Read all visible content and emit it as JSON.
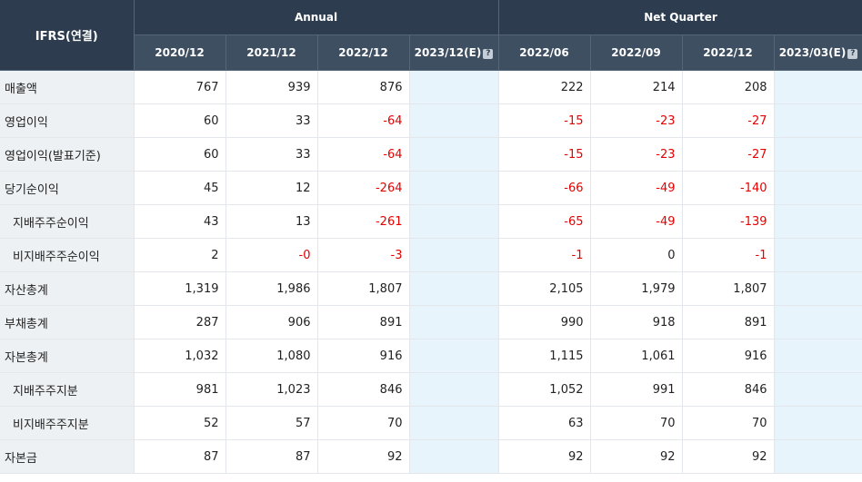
{
  "header": {
    "corner": "IFRS(연결)",
    "annual_label": "Annual",
    "quarter_label": "Net Quarter",
    "help_glyph": "?",
    "annual_periods": [
      "2020/12",
      "2021/12",
      "2022/12",
      "2023/12(E)"
    ],
    "quarter_periods": [
      "2022/06",
      "2022/09",
      "2022/12",
      "2023/03(E)"
    ]
  },
  "colors": {
    "header_bg": "#2d3d4f",
    "negative": "#e60000",
    "estimate_bg": "#e8f4fb",
    "label_bg": "#eef1f4"
  },
  "rows": [
    {
      "label": "매출액",
      "sub": false,
      "annual": [
        "767",
        "939",
        "876",
        ""
      ],
      "quarter": [
        "222",
        "214",
        "208",
        ""
      ]
    },
    {
      "label": "영업이익",
      "sub": false,
      "annual": [
        "60",
        "33",
        "-64",
        ""
      ],
      "quarter": [
        "-15",
        "-23",
        "-27",
        ""
      ]
    },
    {
      "label": "영업이익(발표기준)",
      "sub": false,
      "annual": [
        "60",
        "33",
        "-64",
        ""
      ],
      "quarter": [
        "-15",
        "-23",
        "-27",
        ""
      ]
    },
    {
      "label": "당기순이익",
      "sub": false,
      "annual": [
        "45",
        "12",
        "-264",
        ""
      ],
      "quarter": [
        "-66",
        "-49",
        "-140",
        ""
      ]
    },
    {
      "label": "지배주주순이익",
      "sub": true,
      "annual": [
        "43",
        "13",
        "-261",
        ""
      ],
      "quarter": [
        "-65",
        "-49",
        "-139",
        ""
      ]
    },
    {
      "label": "비지배주주순이익",
      "sub": true,
      "annual": [
        "2",
        "-0",
        "-3",
        ""
      ],
      "quarter": [
        "-1",
        "0",
        "-1",
        ""
      ]
    },
    {
      "label": "자산총계",
      "sub": false,
      "annual": [
        "1,319",
        "1,986",
        "1,807",
        ""
      ],
      "quarter": [
        "2,105",
        "1,979",
        "1,807",
        ""
      ]
    },
    {
      "label": "부채총계",
      "sub": false,
      "annual": [
        "287",
        "906",
        "891",
        ""
      ],
      "quarter": [
        "990",
        "918",
        "891",
        ""
      ]
    },
    {
      "label": "자본총계",
      "sub": false,
      "annual": [
        "1,032",
        "1,080",
        "916",
        ""
      ],
      "quarter": [
        "1,115",
        "1,061",
        "916",
        ""
      ]
    },
    {
      "label": "지배주주지분",
      "sub": true,
      "annual": [
        "981",
        "1,023",
        "846",
        ""
      ],
      "quarter": [
        "1,052",
        "991",
        "846",
        ""
      ]
    },
    {
      "label": "비지배주주지분",
      "sub": true,
      "annual": [
        "52",
        "57",
        "70",
        ""
      ],
      "quarter": [
        "63",
        "70",
        "70",
        ""
      ]
    },
    {
      "label": "자본금",
      "sub": false,
      "annual": [
        "87",
        "87",
        "92",
        ""
      ],
      "quarter": [
        "92",
        "92",
        "92",
        ""
      ]
    }
  ]
}
